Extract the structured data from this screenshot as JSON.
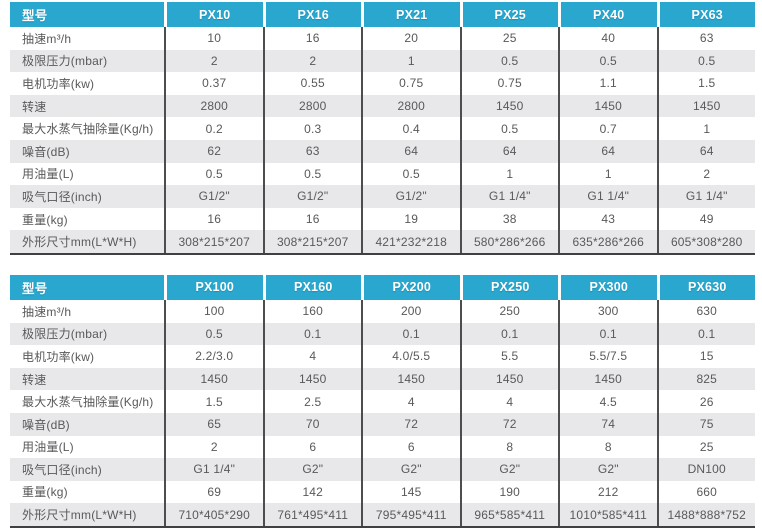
{
  "colors": {
    "header_bg": "#29a7cf",
    "header_text": "#ffffff",
    "row_bg": "#ffffff",
    "row_alt_bg": "#e8e8ea",
    "divider": "#4d4d50",
    "bottom_border": "#404043",
    "text": "#58595b"
  },
  "tables": [
    {
      "header_label": "型号",
      "models": [
        "PX10",
        "PX16",
        "PX21",
        "PX25",
        "PX40",
        "PX63"
      ],
      "rows": [
        {
          "label": "抽速m³/h",
          "values": [
            "10",
            "16",
            "20",
            "25",
            "40",
            "63"
          ]
        },
        {
          "label": "极限压力(mbar)",
          "values": [
            "2",
            "2",
            "1",
            "0.5",
            "0.5",
            "0.5"
          ]
        },
        {
          "label": "电机功率(kw)",
          "values": [
            "0.37",
            "0.55",
            "0.75",
            "0.75",
            "1.1",
            "1.5"
          ]
        },
        {
          "label": "转速",
          "values": [
            "2800",
            "2800",
            "2800",
            "1450",
            "1450",
            "1450"
          ]
        },
        {
          "label": "最大水蒸气抽除量(Kg/h)",
          "values": [
            "0.2",
            "0.3",
            "0.4",
            "0.5",
            "0.7",
            "1"
          ]
        },
        {
          "label": "噪音(dB)",
          "values": [
            "62",
            "63",
            "64",
            "64",
            "64",
            "64"
          ]
        },
        {
          "label": "用油量(L)",
          "values": [
            "0.5",
            "0.5",
            "0.5",
            "1",
            "1",
            "2"
          ]
        },
        {
          "label": "吸气口径(inch)",
          "values": [
            "G1/2\"",
            "G1/2\"",
            "G1/2\"",
            "G1 1/4\"",
            "G1 1/4\"",
            "G1 1/4\""
          ]
        },
        {
          "label": "重量(kg)",
          "values": [
            "16",
            "16",
            "19",
            "38",
            "43",
            "49"
          ]
        },
        {
          "label": "外形尺寸mm(L*W*H)",
          "values": [
            "308*215*207",
            "308*215*207",
            "421*232*218",
            "580*286*266",
            "635*286*266",
            "605*308*280"
          ]
        }
      ]
    },
    {
      "header_label": "型号",
      "models": [
        "PX100",
        "PX160",
        "PX200",
        "PX250",
        "PX300",
        "PX630"
      ],
      "rows": [
        {
          "label": "抽速m³/h",
          "values": [
            "100",
            "160",
            "200",
            "250",
            "300",
            "630"
          ]
        },
        {
          "label": "极限压力(mbar)",
          "values": [
            "0.5",
            "0.1",
            "0.1",
            "0.1",
            "0.1",
            "0.1"
          ]
        },
        {
          "label": "电机功率(kw)",
          "values": [
            "2.2/3.0",
            "4",
            "4.0/5.5",
            "5.5",
            "5.5/7.5",
            "15"
          ]
        },
        {
          "label": "转速",
          "values": [
            "1450",
            "1450",
            "1450",
            "1450",
            "1450",
            "825"
          ]
        },
        {
          "label": "最大水蒸气抽除量(Kg/h)",
          "values": [
            "1.5",
            "2.5",
            "4",
            "4",
            "4.5",
            "26"
          ]
        },
        {
          "label": "噪音(dB)",
          "values": [
            "65",
            "70",
            "72",
            "72",
            "74",
            "75"
          ]
        },
        {
          "label": "用油量(L)",
          "values": [
            "2",
            "6",
            "6",
            "8",
            "8",
            "25"
          ]
        },
        {
          "label": "吸气口径(inch)",
          "values": [
            "G1 1/4\"",
            "G2\"",
            "G2\"",
            "G2\"",
            "G2\"",
            "DN100"
          ]
        },
        {
          "label": "重量(kg)",
          "values": [
            "69",
            "142",
            "145",
            "190",
            "212",
            "660"
          ]
        },
        {
          "label": "外形尺寸mm(L*W*H)",
          "values": [
            "710*405*290",
            "761*495*411",
            "795*495*411",
            "965*585*411",
            "1010*585*411",
            "1488*888*752"
          ]
        }
      ]
    }
  ]
}
